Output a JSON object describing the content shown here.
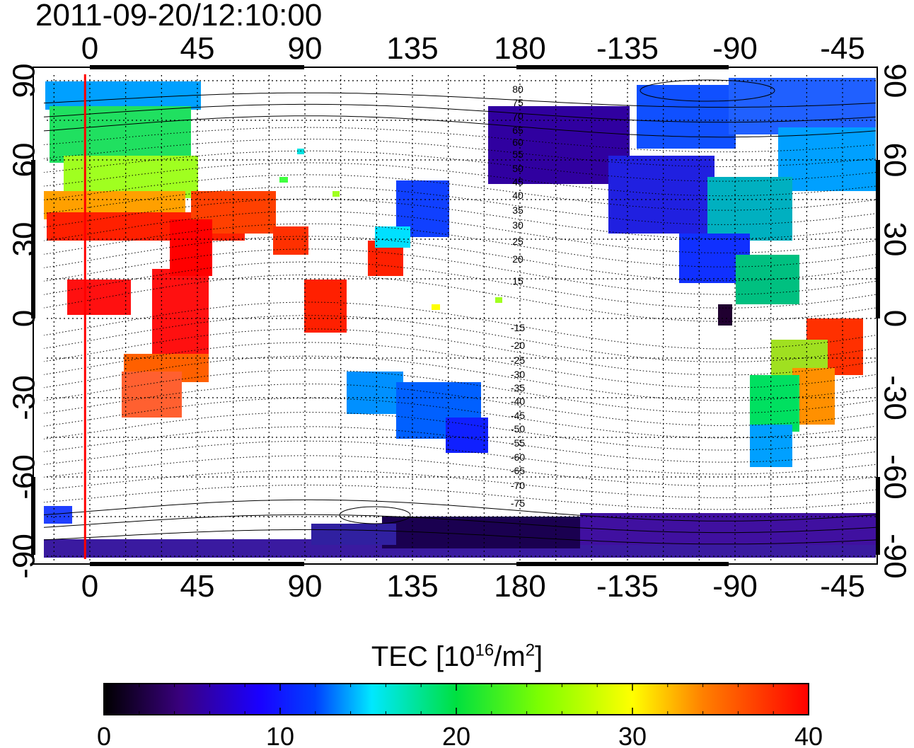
{
  "timestamp": "2011-09-20/12:10:00",
  "colorbar": {
    "title_prefix": "TEC  [10",
    "title_exp1": "16",
    "title_mid": "/m",
    "title_exp2": "2",
    "title_suffix": "]",
    "min": 0,
    "max": 40,
    "ticks": [
      "0",
      "10",
      "20",
      "30",
      "40"
    ]
  },
  "axes": {
    "lon_ticks": [
      "0",
      "45",
      "90",
      "135",
      "180",
      "-135",
      "-90",
      "-45"
    ],
    "lat_ticks": [
      "90",
      "60",
      "30",
      "0",
      "-30",
      "-60",
      "-90"
    ],
    "lon_range": [
      -20,
      335
    ],
    "lat_range": [
      -93,
      93
    ]
  },
  "contour_labels": [
    "80",
    "75",
    "70",
    "65",
    "60",
    "55",
    "50",
    "45",
    "40",
    "35",
    "30",
    "25",
    "20",
    "15",
    "-15",
    "-20",
    "-25",
    "-30",
    "-35",
    "-40",
    "-45",
    "-50",
    "-55",
    "-60",
    "-65",
    "-70",
    "-75"
  ],
  "colors": {
    "red_marker": "#ff0000",
    "cmap_low": "#000000",
    "cmap_high": "#ff0000"
  },
  "marker_longitude": -2
}
